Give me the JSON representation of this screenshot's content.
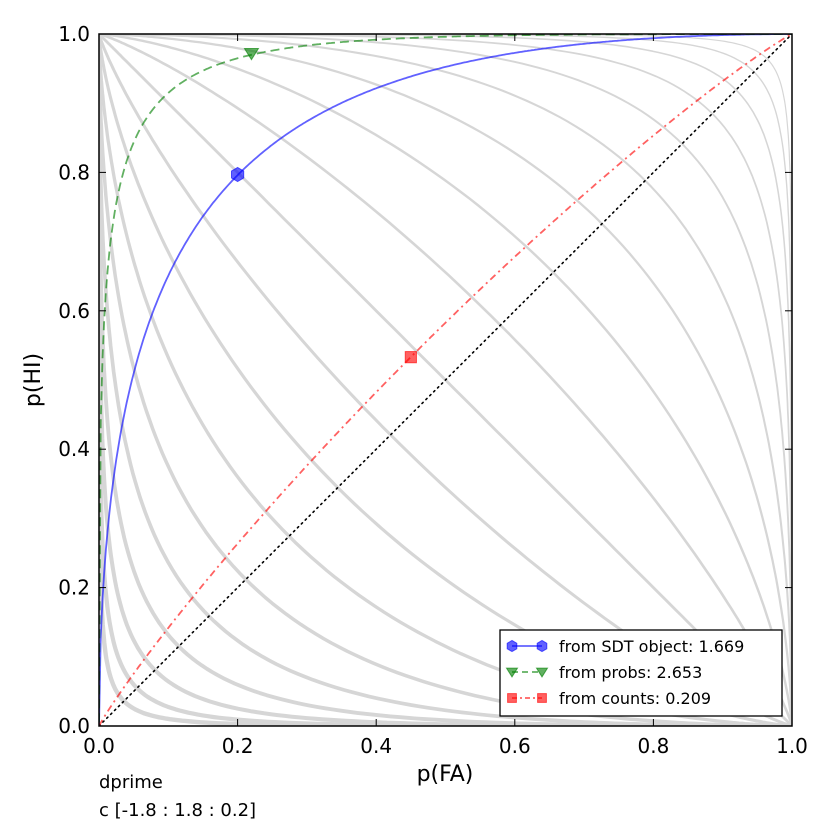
{
  "chart_data": {
    "type": "line",
    "xlabel": "p(FA)",
    "ylabel": "p(HI)",
    "xlim": [
      0.0,
      1.0
    ],
    "ylim": [
      0.0,
      1.0
    ],
    "x_ticks": [
      "0.0",
      "0.2",
      "0.4",
      "0.6",
      "0.8",
      "1.0"
    ],
    "y_ticks": [
      "0.0",
      "0.2",
      "0.4",
      "0.6",
      "0.8",
      "1.0"
    ],
    "grid": false,
    "legend_placement": "lower-right",
    "background_isocriterion_c": {
      "start": -1.8,
      "stop": 1.8,
      "step": 0.2
    },
    "chance_line": {
      "x": [
        0,
        1
      ],
      "y": [
        0,
        1
      ]
    },
    "series": [
      {
        "name": "from SDT object: 1.669",
        "dprime": 1.669,
        "point": {
          "x": 0.2,
          "y": 0.797
        },
        "color": "#0000ff",
        "linestyle": "solid",
        "marker": "hexagon"
      },
      {
        "name": "from probs: 2.653",
        "dprime": 2.653,
        "point": {
          "x": 0.22,
          "y": 0.972
        },
        "color": "#008000",
        "linestyle": "dashed",
        "marker": "triangle-down"
      },
      {
        "name": "from counts: 0.209",
        "dprime": 0.209,
        "point": {
          "x": 0.45,
          "y": 0.533
        },
        "color": "#ff0000",
        "linestyle": "dashdot",
        "marker": "square"
      }
    ]
  },
  "footer": {
    "line1": "dprime",
    "line2": "c [-1.8 : 1.8 : 0.2]"
  }
}
